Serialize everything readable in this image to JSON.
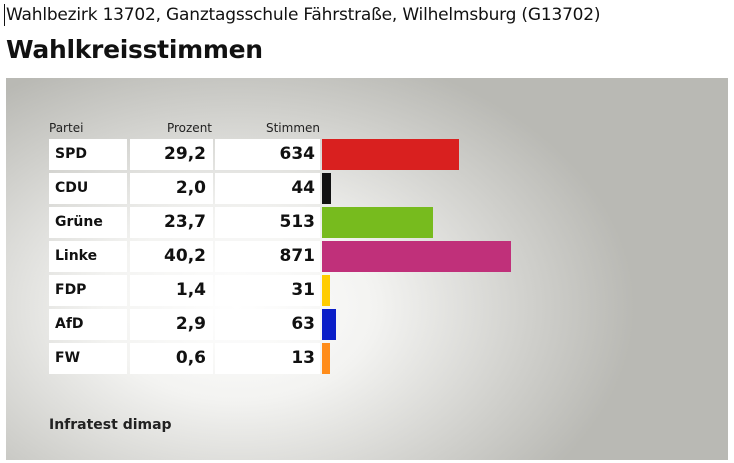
{
  "header": {
    "subtitle": "Wahlbezirk 13702, Ganztagsschule Fährstraße, Wilhelmsburg (G13702)",
    "title": "Wahlkreisstimmen"
  },
  "table": {
    "col_partei": "Partei",
    "col_prozent": "Prozent",
    "col_stimmen": "Stimmen"
  },
  "source": "Infratest dimap",
  "chart_data": {
    "type": "bar",
    "title": "Wahlkreisstimmen",
    "categories": [
      "SPD",
      "CDU",
      "Grüne",
      "Linke",
      "FDP",
      "AfD",
      "FW"
    ],
    "series": [
      {
        "name": "Prozent",
        "values": [
          29.2,
          2.0,
          23.7,
          40.2,
          1.4,
          2.9,
          0.6
        ]
      },
      {
        "name": "Stimmen",
        "values": [
          634,
          44,
          513,
          871,
          31,
          63,
          13
        ]
      }
    ],
    "rows": [
      {
        "party": "SPD",
        "prozent": "29,2",
        "stimmen": "634",
        "color": "#d9201f"
      },
      {
        "party": "CDU",
        "prozent": "2,0",
        "stimmen": "44",
        "color": "#111111"
      },
      {
        "party": "Grüne",
        "prozent": "23,7",
        "stimmen": "513",
        "color": "#77bb1e"
      },
      {
        "party": "Linke",
        "prozent": "40,2",
        "stimmen": "871",
        "color": "#c0307a"
      },
      {
        "party": "FDP",
        "prozent": "1,4",
        "stimmen": "31",
        "color": "#ffcc00"
      },
      {
        "party": "AfD",
        "prozent": "2,9",
        "stimmen": "63",
        "color": "#0a1ec8"
      },
      {
        "party": "FW",
        "prozent": "0,6",
        "stimmen": "13",
        "color": "#ff8c1a"
      }
    ]
  }
}
